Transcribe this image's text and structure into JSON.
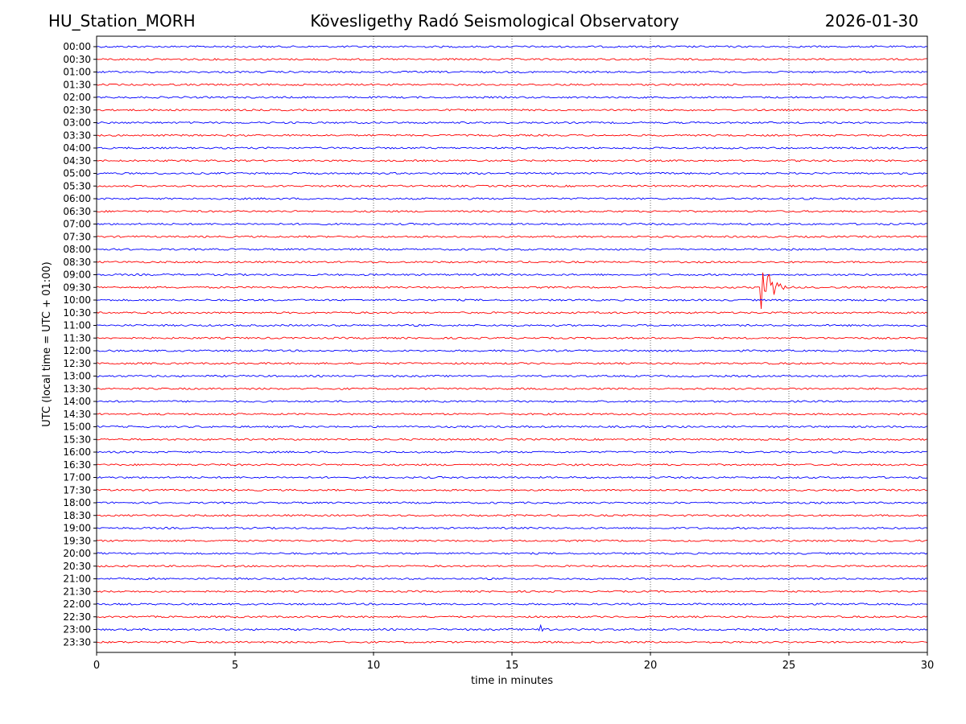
{
  "header": {
    "station": "HU_Station_MORH",
    "title": "Kövesligethy Radó Seismological Observatory",
    "date": "2026-01-30"
  },
  "chart_data": {
    "type": "line",
    "subtype": "helicorder",
    "xlabel": "time in minutes",
    "ylabel": "UTC (local time = UTC + 01:00)",
    "xlim": [
      0,
      30
    ],
    "xticks": [
      0,
      5,
      10,
      15,
      20,
      25,
      30
    ],
    "grid": "vertical dotted lines at each x tick",
    "row_labels": [
      "00:00",
      "00:30",
      "01:00",
      "01:30",
      "02:00",
      "02:30",
      "03:00",
      "03:30",
      "04:00",
      "04:30",
      "05:00",
      "05:30",
      "06:00",
      "06:30",
      "07:00",
      "07:30",
      "08:00",
      "08:30",
      "09:00",
      "09:30",
      "10:00",
      "10:30",
      "11:00",
      "11:30",
      "12:00",
      "12:30",
      "13:00",
      "13:30",
      "14:00",
      "14:30",
      "15:00",
      "15:30",
      "16:00",
      "16:30",
      "17:00",
      "17:30",
      "18:00",
      "18:30",
      "19:00",
      "19:30",
      "20:00",
      "20:30",
      "21:00",
      "21:30",
      "22:00",
      "22:30",
      "23:00",
      "23:30"
    ],
    "colors": [
      "#0000ff",
      "#ff0000"
    ],
    "events": [
      {
        "row": "09:30",
        "minute": 24.1,
        "note": "earthquake signal"
      },
      {
        "row": "23:00",
        "minute": 16.1,
        "note": "small spike"
      }
    ]
  }
}
